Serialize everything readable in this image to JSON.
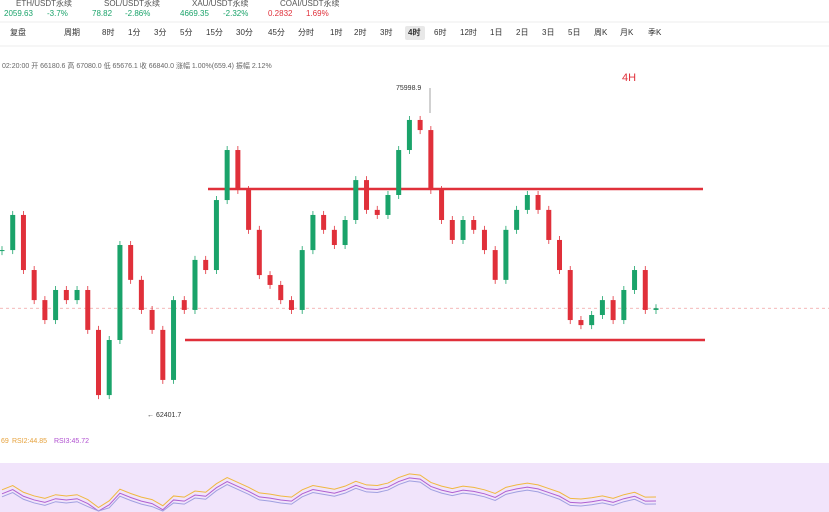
{
  "tickers": [
    {
      "name": "ETH/USDT永续",
      "price": "2059.63",
      "change": "-3.7%"
    },
    {
      "name": "SOL/USDT永续",
      "price": "78.82",
      "change": "-2.86%"
    },
    {
      "name": "XAU/USDT永续",
      "price": "4669.35",
      "change": "-2.32%"
    },
    {
      "name": "COAI/USDT永续",
      "price": "0.2832",
      "change": "1.69%"
    }
  ],
  "toolbar": {
    "replay": "复盘",
    "period": "周期",
    "intervals": [
      "8时",
      "1分",
      "3分",
      "5分",
      "15分",
      "30分",
      "45分",
      "分时",
      "1时",
      "2时",
      "3时",
      "4时",
      "6时",
      "12时",
      "1日",
      "2日",
      "3日",
      "5日",
      "周K",
      "月K",
      "季K"
    ],
    "selected": 11
  },
  "info": "02:20:00 开 66180.6 高 67080.0 低 65676.1 收 66840.0 涨幅 1.00%(659.4) 振幅 2.12%",
  "chart": {
    "timeframe": "4H",
    "high": {
      "value": 75998.9,
      "label": "75998.9"
    },
    "low": {
      "value": 62401.7,
      "label": "← 62401.7"
    },
    "closes": [
      69260,
      70720,
      68430,
      67180,
      66350,
      67600,
      67180,
      67600,
      65940,
      63230,
      65520,
      69470,
      68020,
      66770,
      65940,
      63860,
      67180,
      66770,
      68850,
      68430,
      71340,
      73420,
      71760,
      70100,
      68220,
      67810,
      67180,
      66770,
      69260,
      70720,
      70100,
      69470,
      70510,
      72170,
      70930,
      70720,
      71550,
      73420,
      74670,
      74250,
      71760,
      70510,
      69680,
      70510,
      70100,
      69260,
      68020,
      70100,
      70930,
      71550,
      70930,
      69680,
      68430,
      66350,
      66140,
      66560,
      67180,
      66350,
      67600,
      68430,
      66770,
      66840
    ],
    "levels": [
      71800,
      65520
    ]
  },
  "rsi": {
    "r1": "69",
    "r2": "RSI2:44.85",
    "r3": "RSI3:45.72"
  }
}
